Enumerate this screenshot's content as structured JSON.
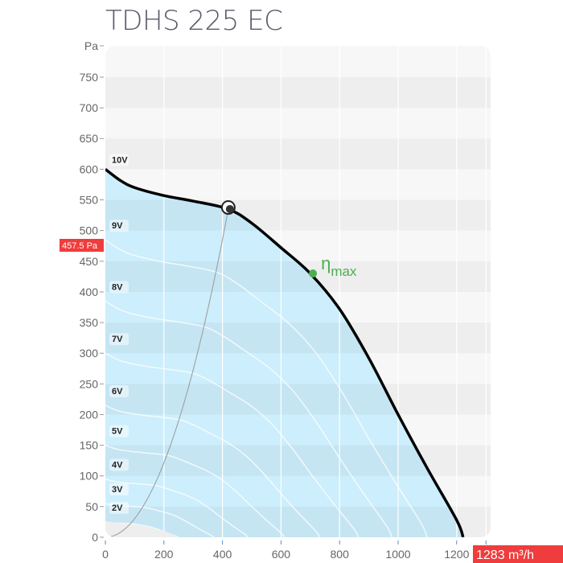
{
  "title": "TDHS 225 EC",
  "chart_data": {
    "type": "line",
    "title": "TDHS 225 EC",
    "ylabel": "Pa",
    "xlim": [
      0,
      1316
    ],
    "ylim": [
      0,
      800
    ],
    "xticks": [
      0,
      200,
      400,
      600,
      800,
      1000,
      1200
    ],
    "yticks": [
      0,
      50,
      100,
      150,
      200,
      250,
      300,
      350,
      400,
      450,
      500,
      550,
      600,
      650,
      700,
      750
    ],
    "grid": true,
    "main_curve": {
      "name": "10V",
      "x": [
        0,
        50,
        100,
        200,
        300,
        420,
        500,
        600,
        700,
        800,
        900,
        1000,
        1100,
        1200,
        1222
      ],
      "y": [
        600,
        582,
        570,
        557,
        548,
        535,
        512,
        472,
        430,
        372,
        292,
        200,
        112,
        28,
        0
      ]
    },
    "voltage_curves": [
      {
        "name": "9V",
        "p0": 485
      },
      {
        "name": "8V",
        "p0": 385
      },
      {
        "name": "7V",
        "p0": 300
      },
      {
        "name": "6V",
        "p0": 215
      },
      {
        "name": "5V",
        "p0": 150
      },
      {
        "name": "4V",
        "p0": 95
      },
      {
        "name": "3V",
        "p0": 55
      },
      {
        "name": "2V",
        "p0": 25
      }
    ],
    "operating_point": {
      "x": 420,
      "y": 535
    },
    "eta_max": {
      "label": "η",
      "sub": "max",
      "x": 709,
      "y": 430
    },
    "markers": {
      "y_readout": "457.5 Pa",
      "x_readout": "1283 m³/h"
    },
    "colors": {
      "fill": "#cdeefc",
      "curve": "#000000",
      "eta": "#4caf50",
      "readout": "#f03c3c"
    }
  }
}
